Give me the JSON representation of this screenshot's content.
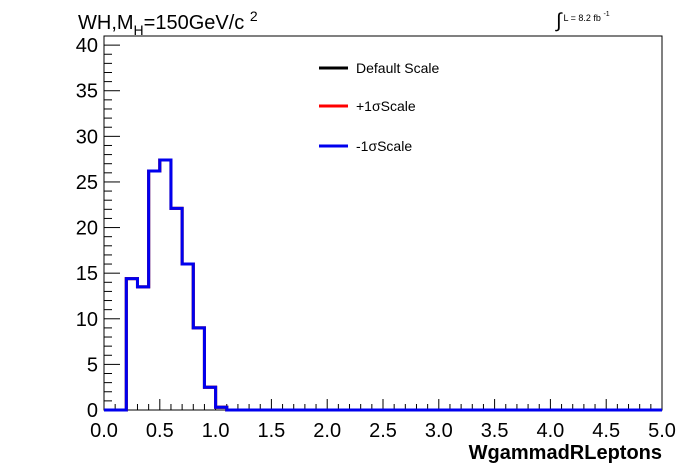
{
  "chart_data": {
    "type": "histogram",
    "title": {
      "prefix": "WH,M",
      "subscript": "H",
      "value": "=150GeV/c",
      "superscript": "2"
    },
    "luminosity": {
      "symbol": "∫",
      "text": "L = 8.2 fb",
      "superscript": "-1"
    },
    "xlabel": "WgammadRLeptons",
    "ylabel": "",
    "xlim": [
      0,
      5
    ],
    "ylim": [
      0,
      41
    ],
    "x_ticks": [
      "0.0",
      "0.5",
      "1.0",
      "1.5",
      "2.0",
      "2.5",
      "3.0",
      "3.5",
      "4.0",
      "4.5",
      "5.0"
    ],
    "y_ticks": [
      "0",
      "5",
      "10",
      "15",
      "20",
      "25",
      "30",
      "35",
      "40"
    ],
    "grid": false,
    "legend_position": "top-center",
    "bin_edges": [
      0.0,
      0.1,
      0.2,
      0.3,
      0.4,
      0.5,
      0.6,
      0.7,
      0.8,
      0.9,
      1.0,
      1.1,
      1.2,
      1.3,
      1.4,
      1.5,
      1.6,
      1.7,
      1.8,
      1.9,
      2.0,
      2.1,
      2.2,
      2.3,
      2.4,
      2.5,
      2.6,
      2.7,
      2.8,
      2.9,
      3.0,
      3.1,
      3.2,
      3.3,
      3.4,
      3.5,
      3.6,
      3.7,
      3.8,
      3.9,
      4.0,
      4.1,
      4.2,
      4.3,
      4.4,
      4.5,
      4.6,
      4.7,
      4.8,
      4.9,
      5.0
    ],
    "series": [
      {
        "name": "Default Scale",
        "color": "#000000",
        "values": [
          0,
          0,
          14.4,
          13.5,
          26.2,
          27.4,
          22.1,
          16.0,
          9.0,
          2.5,
          0.3,
          0,
          0,
          0,
          0,
          0,
          0,
          0,
          0,
          0,
          0,
          0,
          0,
          0,
          0,
          0,
          0,
          0,
          0,
          0,
          0,
          0,
          0,
          0,
          0,
          0,
          0,
          0,
          0,
          0,
          0,
          0,
          0,
          0,
          0,
          0,
          0,
          0,
          0,
          0
        ]
      },
      {
        "name": "+1σScale",
        "color": "#ff0000",
        "values": [
          0,
          0,
          14.4,
          13.5,
          26.2,
          27.4,
          22.1,
          16.0,
          9.0,
          2.5,
          0.3,
          0,
          0,
          0,
          0,
          0,
          0,
          0,
          0,
          0,
          0,
          0,
          0,
          0,
          0,
          0,
          0,
          0,
          0,
          0,
          0,
          0,
          0,
          0,
          0,
          0,
          0,
          0,
          0,
          0,
          0,
          0,
          0,
          0,
          0,
          0,
          0,
          0,
          0,
          0
        ]
      },
      {
        "name": "-1σScale",
        "color": "#0000ee",
        "values": [
          0,
          0,
          14.4,
          13.5,
          26.2,
          27.4,
          22.1,
          16.0,
          9.0,
          2.5,
          0.3,
          0,
          0,
          0,
          0,
          0,
          0,
          0,
          0,
          0,
          0,
          0,
          0,
          0,
          0,
          0,
          0,
          0,
          0,
          0,
          0,
          0,
          0,
          0,
          0,
          0,
          0,
          0,
          0,
          0,
          0,
          0,
          0,
          0,
          0,
          0,
          0,
          0,
          0,
          0
        ]
      }
    ]
  }
}
